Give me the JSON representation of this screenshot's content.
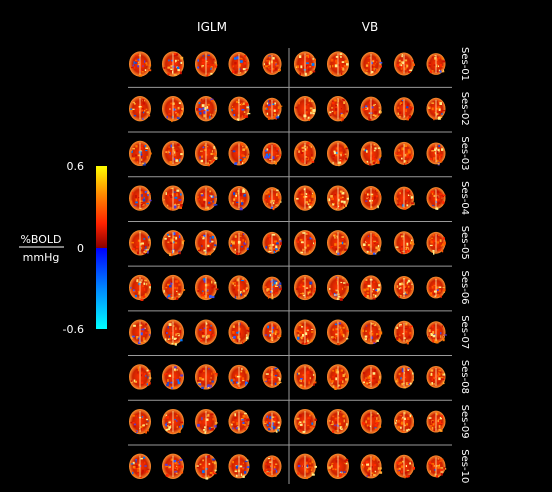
{
  "columns": [
    "IGLM",
    "VB"
  ],
  "sessions": [
    "Ses-01",
    "Ses-02",
    "Ses-03",
    "Ses-04",
    "Ses-05",
    "Ses-06",
    "Ses-07",
    "Ses-08",
    "Ses-09",
    "Ses-10"
  ],
  "slices_per_method": 5,
  "colorbar": {
    "max_label": "0.6",
    "zero_label": "0",
    "min_label": "-0.6",
    "unit_numerator": "%BOLD",
    "unit_denominator": "mmHg",
    "positive_colors": [
      "#ffff00",
      "#ff8800",
      "#ff2200",
      "#880000"
    ],
    "negative_colors": [
      "#0000ff",
      "#0088ff",
      "#00ffff"
    ]
  },
  "background": "#000000",
  "divider_color": "#9a9a9a"
}
